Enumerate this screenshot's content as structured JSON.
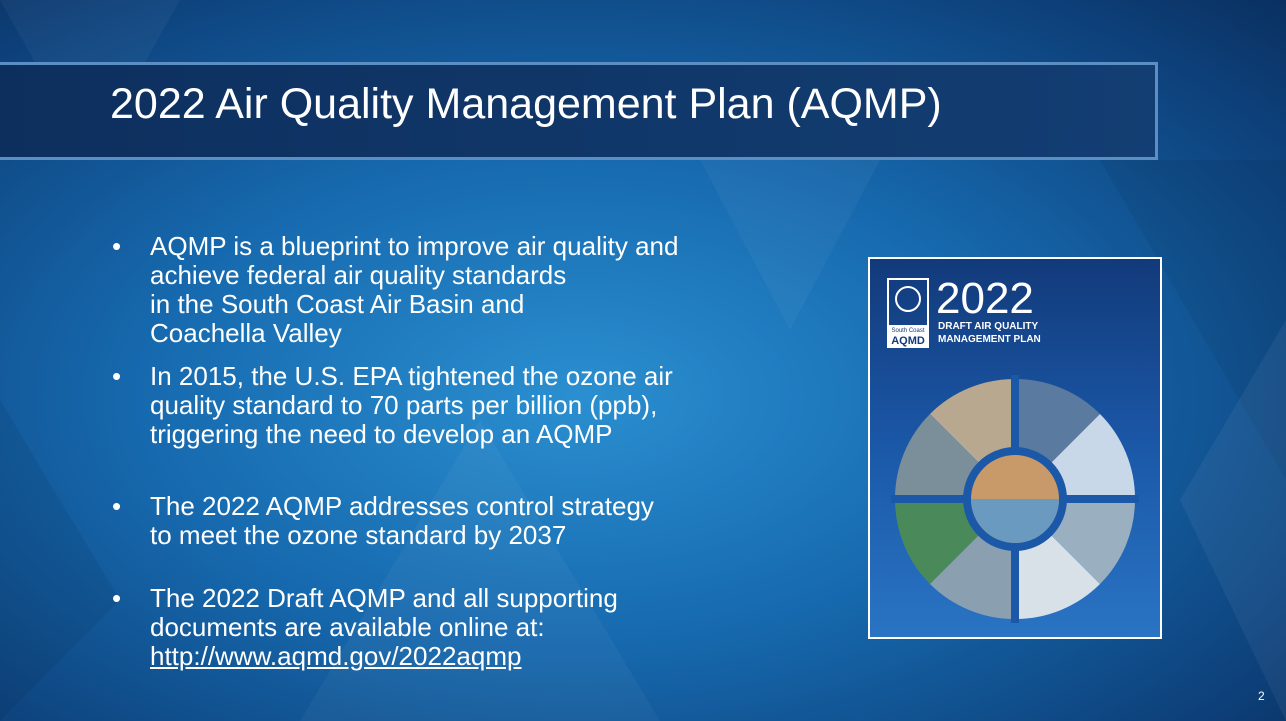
{
  "slide": {
    "title": "2022 Air Quality Management Plan (AQMP)",
    "bullets": [
      {
        "lines": [
          "AQMP is a blueprint to improve air quality and",
          "achieve federal air quality standards",
          "in the South Coast Air Basin and",
          "Coachella Valley"
        ]
      },
      {
        "lines": [
          "In 2015, the U.S. EPA tightened the ozone air",
          "quality standard to 70 parts per billion (ppb),",
          "triggering the need to develop an AQMP"
        ]
      },
      {
        "lines": [
          "The 2022 AQMP addresses control strategy",
          "to meet the ozone standard by 2037"
        ]
      },
      {
        "lines": [
          "The 2022 Draft AQMP and all supporting",
          "documents are available online at:"
        ],
        "link": "http://www.aqmd.gov/2022aqmp"
      }
    ],
    "cover": {
      "year": "2022",
      "subtitle_1": "DRAFT AIR QUALITY",
      "subtitle_2": "MANAGEMENT PLAN",
      "logo_small": "South Coast",
      "logo_big": "AQMD"
    },
    "page_number": "2"
  }
}
